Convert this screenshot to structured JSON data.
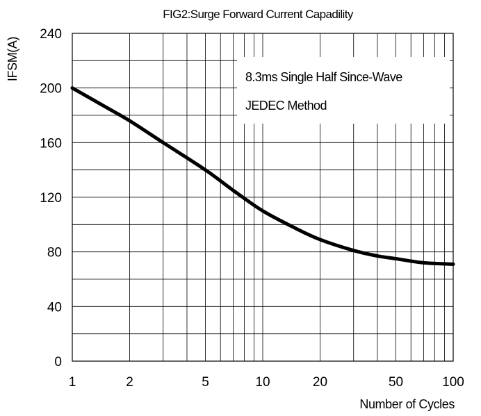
{
  "chart_data": {
    "type": "line",
    "title": "FIG2:Surge Forward Current Capadility",
    "xlabel": "Number of Cycles",
    "ylabel": "IFSM(A)",
    "xscale": "log",
    "xlim": [
      1,
      100
    ],
    "ylim": [
      0,
      240
    ],
    "x_ticks": [
      1,
      2,
      5,
      10,
      20,
      50,
      100
    ],
    "x_tick_labels": [
      "1",
      "2",
      "5",
      "10",
      "20",
      "50",
      "100"
    ],
    "y_ticks": [
      0,
      40,
      80,
      120,
      160,
      200,
      240
    ],
    "y_tick_labels": [
      "0",
      "40",
      "80",
      "120",
      "160",
      "200",
      "240"
    ],
    "grid": true,
    "annotations": [
      "8.3ms Single Half Since-Wave",
      "JEDEC Method"
    ],
    "series": [
      {
        "x": [
          1,
          1.5,
          2,
          3,
          5,
          7,
          10,
          15,
          20,
          30,
          40,
          50,
          70,
          100
        ],
        "y": [
          200,
          186,
          176,
          160,
          140,
          125,
          110,
          97,
          89,
          81,
          77,
          75,
          72,
          71
        ]
      }
    ]
  },
  "colors": {
    "line": "#000000",
    "grid": "#000000",
    "background": "#ffffff"
  }
}
